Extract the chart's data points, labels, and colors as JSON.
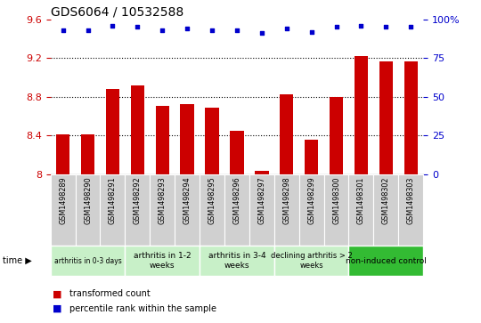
{
  "title": "GDS6064 / 10532588",
  "samples": [
    "GSM1498289",
    "GSM1498290",
    "GSM1498291",
    "GSM1498292",
    "GSM1498293",
    "GSM1498294",
    "GSM1498295",
    "GSM1498296",
    "GSM1498297",
    "GSM1498298",
    "GSM1498299",
    "GSM1498300",
    "GSM1498301",
    "GSM1498302",
    "GSM1498303"
  ],
  "bar_values": [
    8.41,
    8.41,
    8.88,
    8.92,
    8.71,
    8.73,
    8.69,
    8.45,
    8.04,
    8.83,
    8.36,
    8.8,
    9.22,
    9.17,
    9.17
  ],
  "dot_values": [
    93,
    93,
    96,
    95,
    93,
    94,
    93,
    93,
    91,
    94,
    92,
    95,
    96,
    95,
    95
  ],
  "bar_color": "#cc0000",
  "dot_color": "#0000cc",
  "ylim_left": [
    8.0,
    9.6
  ],
  "ylim_right": [
    0,
    100
  ],
  "yticks_left": [
    8.0,
    8.4,
    8.8,
    9.2,
    9.6
  ],
  "yticks_left_labels": [
    "8",
    "8.4",
    "8.8",
    "9.2",
    "9.6"
  ],
  "yticks_right": [
    0,
    25,
    50,
    75,
    100
  ],
  "yticks_right_labels": [
    "0",
    "25",
    "50",
    "75",
    "100%"
  ],
  "groups": [
    {
      "label": "arthritis in 0-3 days",
      "start": 0,
      "end": 3,
      "color": "#c8f0c8",
      "fontsize": 5.5
    },
    {
      "label": "arthritis in 1-2\nweeks",
      "start": 3,
      "end": 6,
      "color": "#c8f0c8",
      "fontsize": 6.5
    },
    {
      "label": "arthritis in 3-4\nweeks",
      "start": 6,
      "end": 9,
      "color": "#c8f0c8",
      "fontsize": 6.5
    },
    {
      "label": "declining arthritis > 2\nweeks",
      "start": 9,
      "end": 12,
      "color": "#c8f0c8",
      "fontsize": 6.0
    },
    {
      "label": "non-induced control",
      "start": 12,
      "end": 15,
      "color": "#33bb33",
      "fontsize": 6.5
    }
  ],
  "sample_bg_color": "#d0d0d0",
  "legend_labels": [
    "transformed count",
    "percentile rank within the sample"
  ],
  "legend_colors": [
    "#cc0000",
    "#0000cc"
  ],
  "bar_width": 0.55
}
